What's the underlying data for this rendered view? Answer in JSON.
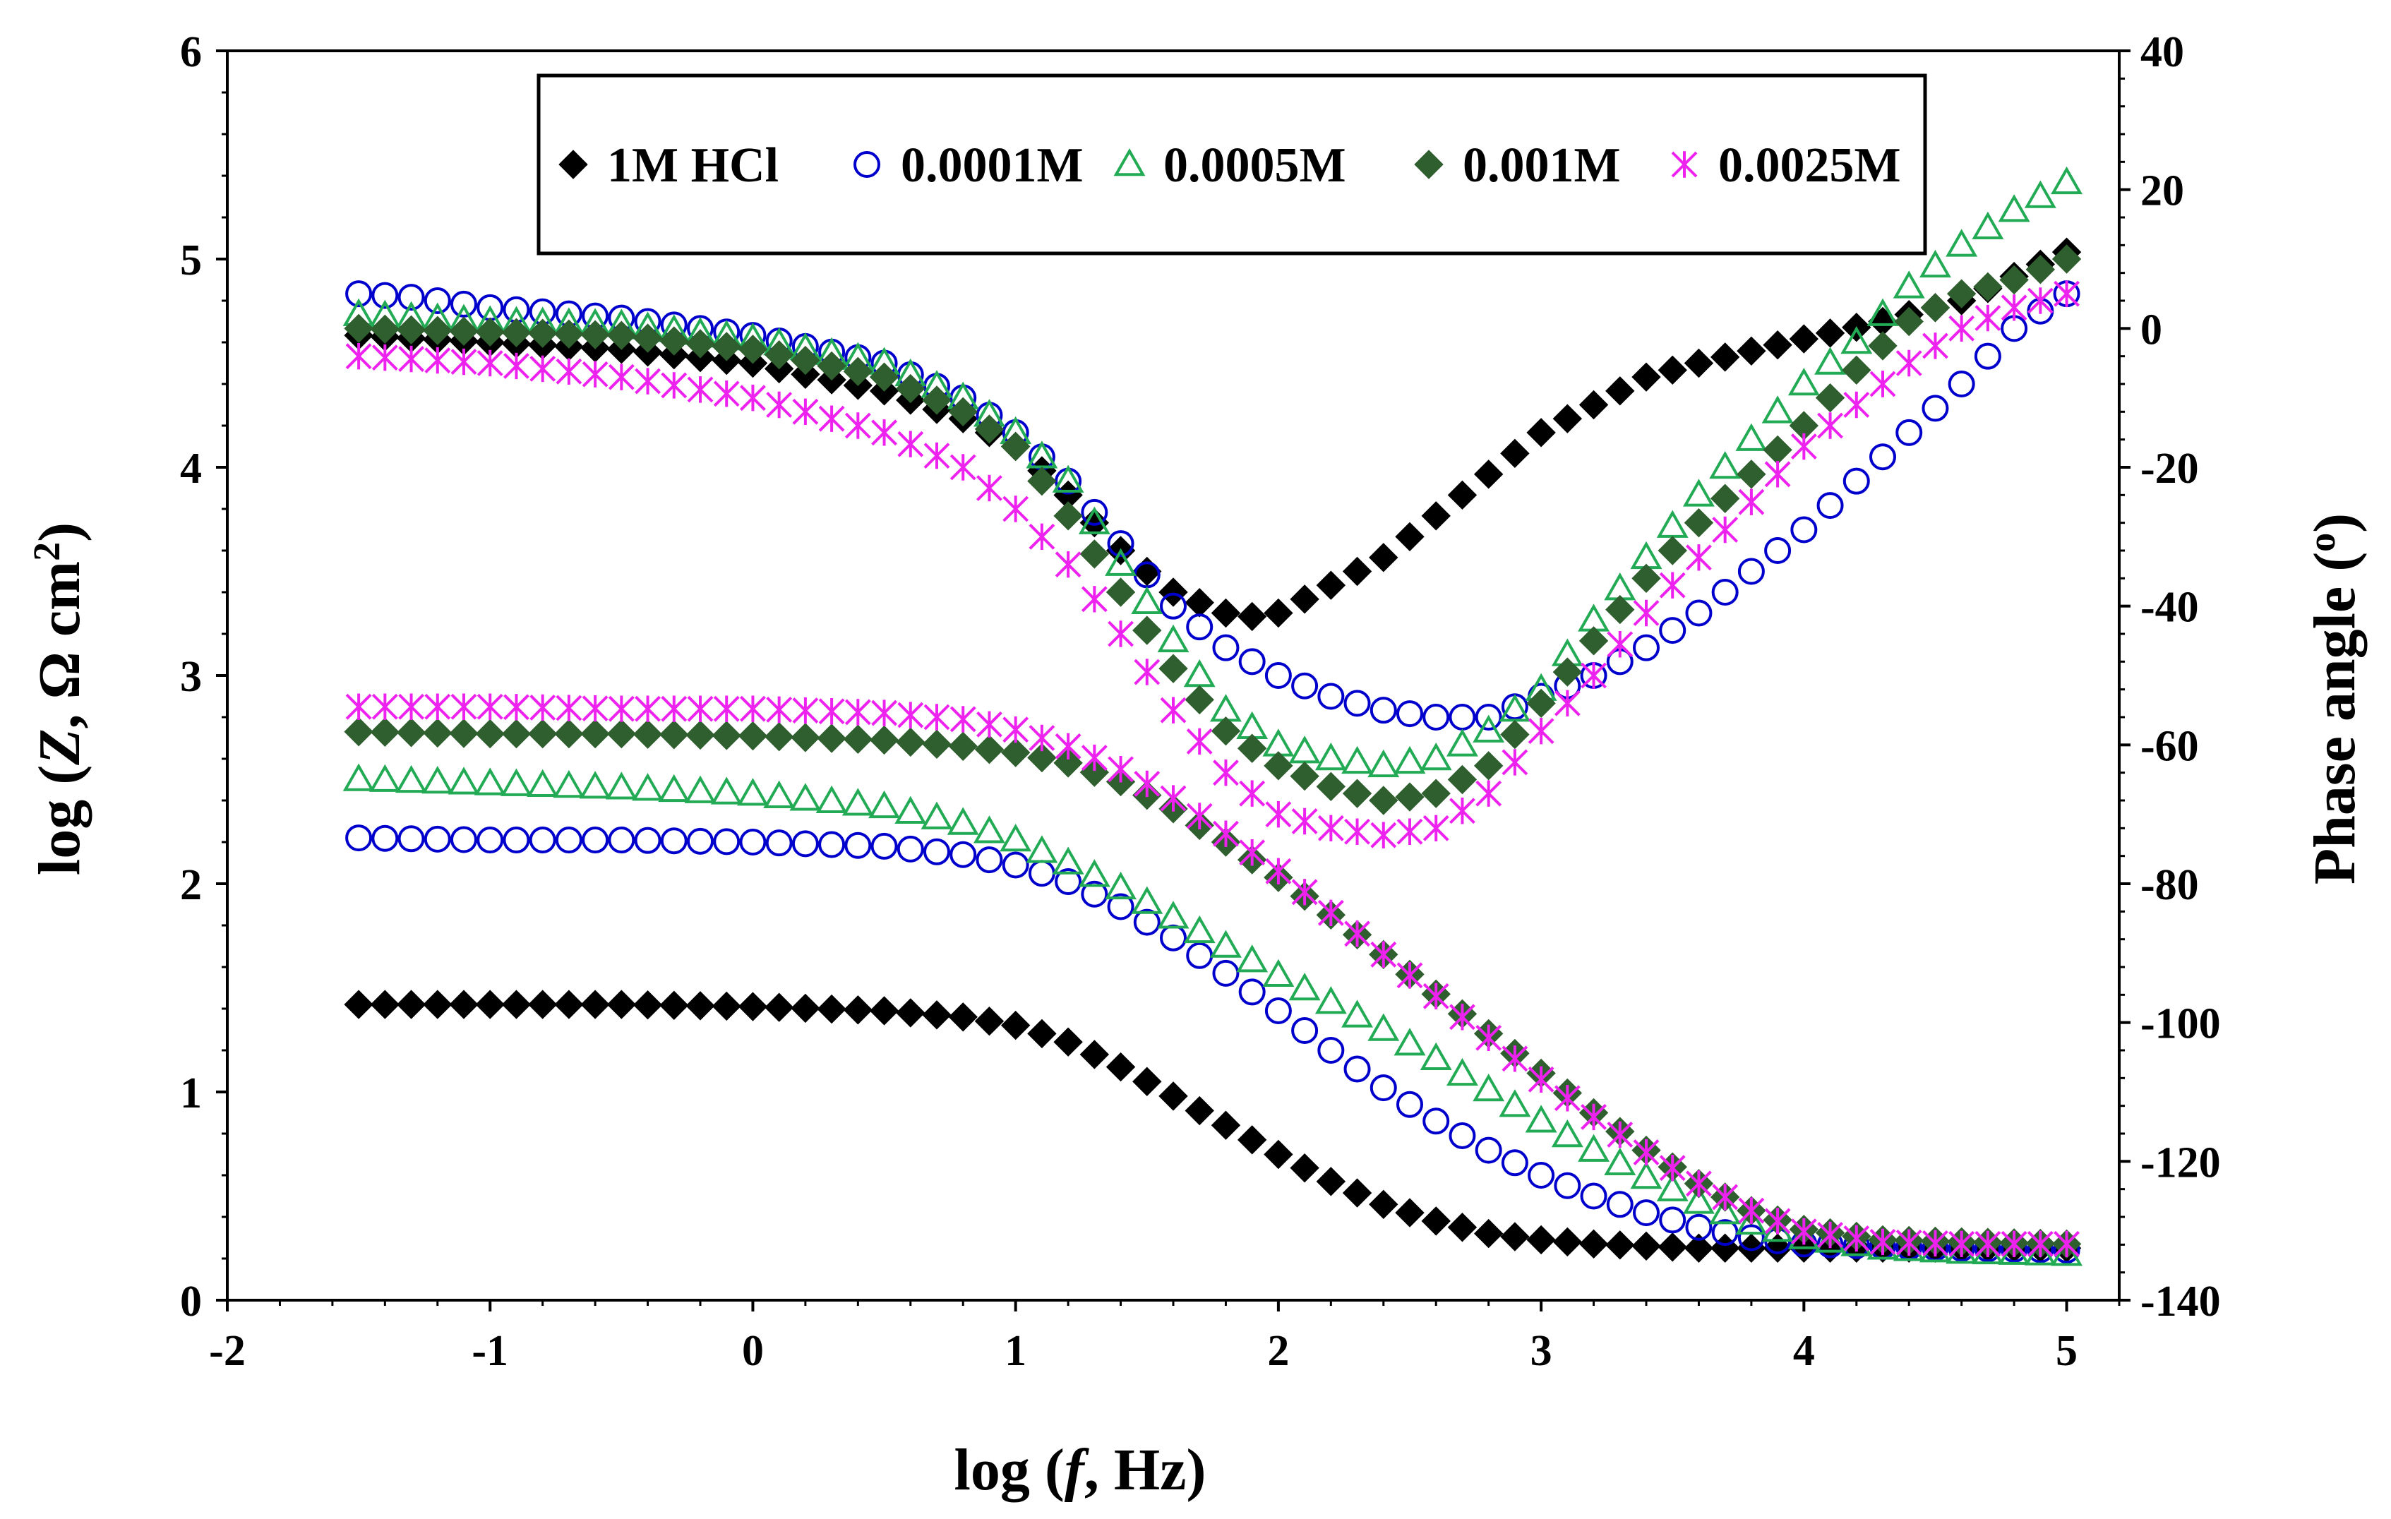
{
  "chart_data": {
    "type": "scatter",
    "subtype": "bode-plot",
    "title": "",
    "xlabel": {
      "prefix": "log (",
      "italic": "f",
      "suffix": ", Hz)"
    },
    "ylabel": {
      "prefix": "log (",
      "italic": "Z",
      "mid": ", Ω cm",
      "sup": "2",
      "suffix": ")"
    },
    "y2label": {
      "prefix": "Phase angle (",
      "sup": "o",
      "suffix": ")"
    },
    "xlim": [
      -2,
      5.2
    ],
    "ylim": [
      0,
      6
    ],
    "y2lim": [
      -140,
      40
    ],
    "xticks": [
      "-2",
      "-1",
      "0",
      "1",
      "2",
      "3",
      "4",
      "5"
    ],
    "yticks": [
      "0",
      "1",
      "2",
      "3",
      "4",
      "5",
      "6"
    ],
    "y2ticks": [
      "-140",
      "-120",
      "-100",
      "-80",
      "-60",
      "-40",
      "-20",
      "0",
      "20",
      "40"
    ],
    "legend": {
      "position": "top-center"
    },
    "series": [
      {
        "name": "1M HCl",
        "marker": "filled-diamond",
        "color": "#000000",
        "logZ_points": [
          [
            -1.5,
            1.42
          ],
          [
            -1,
            1.42
          ],
          [
            -0.5,
            1.42
          ],
          [
            0,
            1.41
          ],
          [
            0.5,
            1.39
          ],
          [
            0.8,
            1.36
          ],
          [
            1,
            1.32
          ],
          [
            1.2,
            1.24
          ],
          [
            1.4,
            1.12
          ],
          [
            1.6,
            0.98
          ],
          [
            1.8,
            0.84
          ],
          [
            2,
            0.7
          ],
          [
            2.2,
            0.57
          ],
          [
            2.4,
            0.46
          ],
          [
            2.6,
            0.38
          ],
          [
            2.8,
            0.32
          ],
          [
            3,
            0.29
          ],
          [
            3.2,
            0.27
          ],
          [
            3.4,
            0.26
          ],
          [
            3.6,
            0.25
          ],
          [
            4,
            0.25
          ],
          [
            4.5,
            0.25
          ],
          [
            5,
            0.25
          ]
        ],
        "phase_points": [
          [
            -1.5,
            -1
          ],
          [
            -1,
            -2
          ],
          [
            -0.5,
            -3
          ],
          [
            0,
            -5
          ],
          [
            0.5,
            -9
          ],
          [
            0.8,
            -13
          ],
          [
            1,
            -17
          ],
          [
            1.2,
            -24
          ],
          [
            1.4,
            -32
          ],
          [
            1.6,
            -38
          ],
          [
            1.8,
            -41
          ],
          [
            1.9,
            -41.5
          ],
          [
            2,
            -41
          ],
          [
            2.2,
            -37
          ],
          [
            2.4,
            -33
          ],
          [
            2.6,
            -27
          ],
          [
            2.8,
            -21
          ],
          [
            3,
            -15
          ],
          [
            3.2,
            -11
          ],
          [
            3.4,
            -7
          ],
          [
            3.6,
            -5
          ],
          [
            4,
            -1.5
          ],
          [
            4.3,
            1
          ],
          [
            4.6,
            4
          ],
          [
            5,
            11
          ]
        ]
      },
      {
        "name": "0.0001M",
        "marker": "open-circle",
        "color": "#0000cc",
        "logZ_points": [
          [
            -1.5,
            2.22
          ],
          [
            -1,
            2.21
          ],
          [
            -0.5,
            2.21
          ],
          [
            0,
            2.2
          ],
          [
            0.5,
            2.18
          ],
          [
            0.8,
            2.14
          ],
          [
            1,
            2.09
          ],
          [
            1.2,
            2.01
          ],
          [
            1.4,
            1.89
          ],
          [
            1.6,
            1.74
          ],
          [
            1.8,
            1.57
          ],
          [
            2,
            1.39
          ],
          [
            2.2,
            1.2
          ],
          [
            2.4,
            1.02
          ],
          [
            2.6,
            0.86
          ],
          [
            2.8,
            0.72
          ],
          [
            3,
            0.6
          ],
          [
            3.2,
            0.5
          ],
          [
            3.4,
            0.42
          ],
          [
            3.6,
            0.35
          ],
          [
            3.8,
            0.3
          ],
          [
            4,
            0.27
          ],
          [
            4.5,
            0.25
          ],
          [
            5,
            0.24
          ]
        ],
        "phase_points": [
          [
            -1.5,
            5
          ],
          [
            -1.3,
            4.5
          ],
          [
            -1,
            3
          ],
          [
            -0.5,
            1.5
          ],
          [
            0,
            -1
          ],
          [
            0.5,
            -5
          ],
          [
            0.8,
            -10
          ],
          [
            1,
            -15
          ],
          [
            1.2,
            -22
          ],
          [
            1.4,
            -31
          ],
          [
            1.6,
            -40
          ],
          [
            1.8,
            -46
          ],
          [
            2,
            -50
          ],
          [
            2.2,
            -53
          ],
          [
            2.4,
            -55
          ],
          [
            2.6,
            -56
          ],
          [
            2.8,
            -56
          ],
          [
            3,
            -53
          ],
          [
            3.2,
            -50
          ],
          [
            3.4,
            -46
          ],
          [
            3.6,
            -41
          ],
          [
            3.8,
            -35
          ],
          [
            4,
            -29
          ],
          [
            4.2,
            -22
          ],
          [
            4.4,
            -15
          ],
          [
            4.6,
            -8
          ],
          [
            4.8,
            0
          ],
          [
            5,
            5
          ]
        ]
      },
      {
        "name": "0.0005M",
        "marker": "open-triangle",
        "color": "#22aa55",
        "logZ_points": [
          [
            -1.5,
            2.5
          ],
          [
            -1,
            2.48
          ],
          [
            -0.5,
            2.46
          ],
          [
            0,
            2.43
          ],
          [
            0.5,
            2.37
          ],
          [
            0.8,
            2.29
          ],
          [
            1,
            2.21
          ],
          [
            1.2,
            2.1
          ],
          [
            1.4,
            1.98
          ],
          [
            1.6,
            1.84
          ],
          [
            1.8,
            1.7
          ],
          [
            2,
            1.56
          ],
          [
            2.2,
            1.43
          ],
          [
            2.4,
            1.3
          ],
          [
            2.6,
            1.16
          ],
          [
            2.8,
            1.01
          ],
          [
            3,
            0.86
          ],
          [
            3.2,
            0.72
          ],
          [
            3.4,
            0.59
          ],
          [
            3.6,
            0.47
          ],
          [
            3.8,
            0.37
          ],
          [
            4,
            0.3
          ],
          [
            4.3,
            0.25
          ],
          [
            4.6,
            0.23
          ],
          [
            5,
            0.22
          ]
        ],
        "phase_points": [
          [
            -1.5,
            2
          ],
          [
            -1,
            1
          ],
          [
            -0.5,
            0.5
          ],
          [
            0,
            -1.5
          ],
          [
            0.5,
            -5
          ],
          [
            0.8,
            -10
          ],
          [
            1,
            -15
          ],
          [
            1.2,
            -22
          ],
          [
            1.4,
            -34
          ],
          [
            1.6,
            -45
          ],
          [
            1.8,
            -55
          ],
          [
            2,
            -60
          ],
          [
            2.2,
            -62
          ],
          [
            2.4,
            -63
          ],
          [
            2.6,
            -62
          ],
          [
            2.8,
            -58
          ],
          [
            3,
            -52
          ],
          [
            3.2,
            -42
          ],
          [
            3.4,
            -33
          ],
          [
            3.6,
            -24
          ],
          [
            3.8,
            -16
          ],
          [
            4,
            -8
          ],
          [
            4.2,
            -2
          ],
          [
            4.4,
            6
          ],
          [
            4.6,
            12
          ],
          [
            4.8,
            17
          ],
          [
            5,
            21
          ]
        ]
      },
      {
        "name": "0.001M",
        "marker": "filled-diamond",
        "color": "#2f5e2f",
        "logZ_points": [
          [
            -1.5,
            2.73
          ],
          [
            -1,
            2.72
          ],
          [
            -0.5,
            2.72
          ],
          [
            0,
            2.71
          ],
          [
            0.5,
            2.69
          ],
          [
            0.8,
            2.66
          ],
          [
            1,
            2.63
          ],
          [
            1.2,
            2.58
          ],
          [
            1.4,
            2.49
          ],
          [
            1.6,
            2.36
          ],
          [
            1.8,
            2.2
          ],
          [
            2,
            2.03
          ],
          [
            2.2,
            1.85
          ],
          [
            2.4,
            1.66
          ],
          [
            2.6,
            1.47
          ],
          [
            2.8,
            1.28
          ],
          [
            3,
            1.09
          ],
          [
            3.2,
            0.9
          ],
          [
            3.4,
            0.72
          ],
          [
            3.6,
            0.56
          ],
          [
            3.8,
            0.43
          ],
          [
            4,
            0.34
          ],
          [
            4.3,
            0.29
          ],
          [
            4.6,
            0.28
          ],
          [
            5,
            0.27
          ]
        ],
        "phase_points": [
          [
            -1.5,
            0
          ],
          [
            -1,
            -0.5
          ],
          [
            -0.5,
            -1
          ],
          [
            0,
            -3
          ],
          [
            0.5,
            -7
          ],
          [
            0.8,
            -12
          ],
          [
            1,
            -17
          ],
          [
            1.2,
            -27
          ],
          [
            1.4,
            -38
          ],
          [
            1.6,
            -49
          ],
          [
            1.8,
            -58
          ],
          [
            2,
            -63
          ],
          [
            2.2,
            -66
          ],
          [
            2.4,
            -68
          ],
          [
            2.6,
            -67
          ],
          [
            2.8,
            -63
          ],
          [
            3,
            -54
          ],
          [
            3.2,
            -45
          ],
          [
            3.4,
            -36
          ],
          [
            3.6,
            -28
          ],
          [
            3.8,
            -21
          ],
          [
            4,
            -14
          ],
          [
            4.2,
            -6
          ],
          [
            4.4,
            1
          ],
          [
            4.6,
            5
          ],
          [
            4.8,
            7
          ],
          [
            5,
            10
          ]
        ]
      },
      {
        "name": "0.0025M",
        "marker": "asterisk",
        "color": "#ee22ee",
        "logZ_points": [
          [
            -1.5,
            2.85
          ],
          [
            -1,
            2.85
          ],
          [
            -0.5,
            2.84
          ],
          [
            0,
            2.84
          ],
          [
            0.5,
            2.82
          ],
          [
            0.8,
            2.79
          ],
          [
            1,
            2.74
          ],
          [
            1.2,
            2.66
          ],
          [
            1.4,
            2.55
          ],
          [
            1.6,
            2.41
          ],
          [
            1.8,
            2.24
          ],
          [
            2,
            2.06
          ],
          [
            2.2,
            1.86
          ],
          [
            2.4,
            1.66
          ],
          [
            2.6,
            1.46
          ],
          [
            2.8,
            1.26
          ],
          [
            3,
            1.06
          ],
          [
            3.2,
            0.88
          ],
          [
            3.4,
            0.71
          ],
          [
            3.6,
            0.56
          ],
          [
            3.8,
            0.43
          ],
          [
            4,
            0.33
          ],
          [
            4.3,
            0.28
          ],
          [
            4.6,
            0.27
          ],
          [
            5,
            0.27
          ]
        ],
        "phase_points": [
          [
            -1.5,
            -4
          ],
          [
            -1,
            -5
          ],
          [
            -0.5,
            -7
          ],
          [
            0,
            -10
          ],
          [
            0.5,
            -15
          ],
          [
            0.8,
            -20
          ],
          [
            1,
            -26
          ],
          [
            1.2,
            -34
          ],
          [
            1.4,
            -44
          ],
          [
            1.6,
            -55
          ],
          [
            1.8,
            -64
          ],
          [
            2,
            -70
          ],
          [
            2.2,
            -72
          ],
          [
            2.4,
            -73
          ],
          [
            2.6,
            -72
          ],
          [
            2.8,
            -67
          ],
          [
            3,
            -58
          ],
          [
            3.2,
            -50
          ],
          [
            3.4,
            -41
          ],
          [
            3.6,
            -33
          ],
          [
            3.8,
            -25
          ],
          [
            4,
            -17
          ],
          [
            4.2,
            -11
          ],
          [
            4.4,
            -5
          ],
          [
            4.6,
            0
          ],
          [
            4.8,
            3
          ],
          [
            5,
            5
          ]
        ]
      }
    ]
  }
}
